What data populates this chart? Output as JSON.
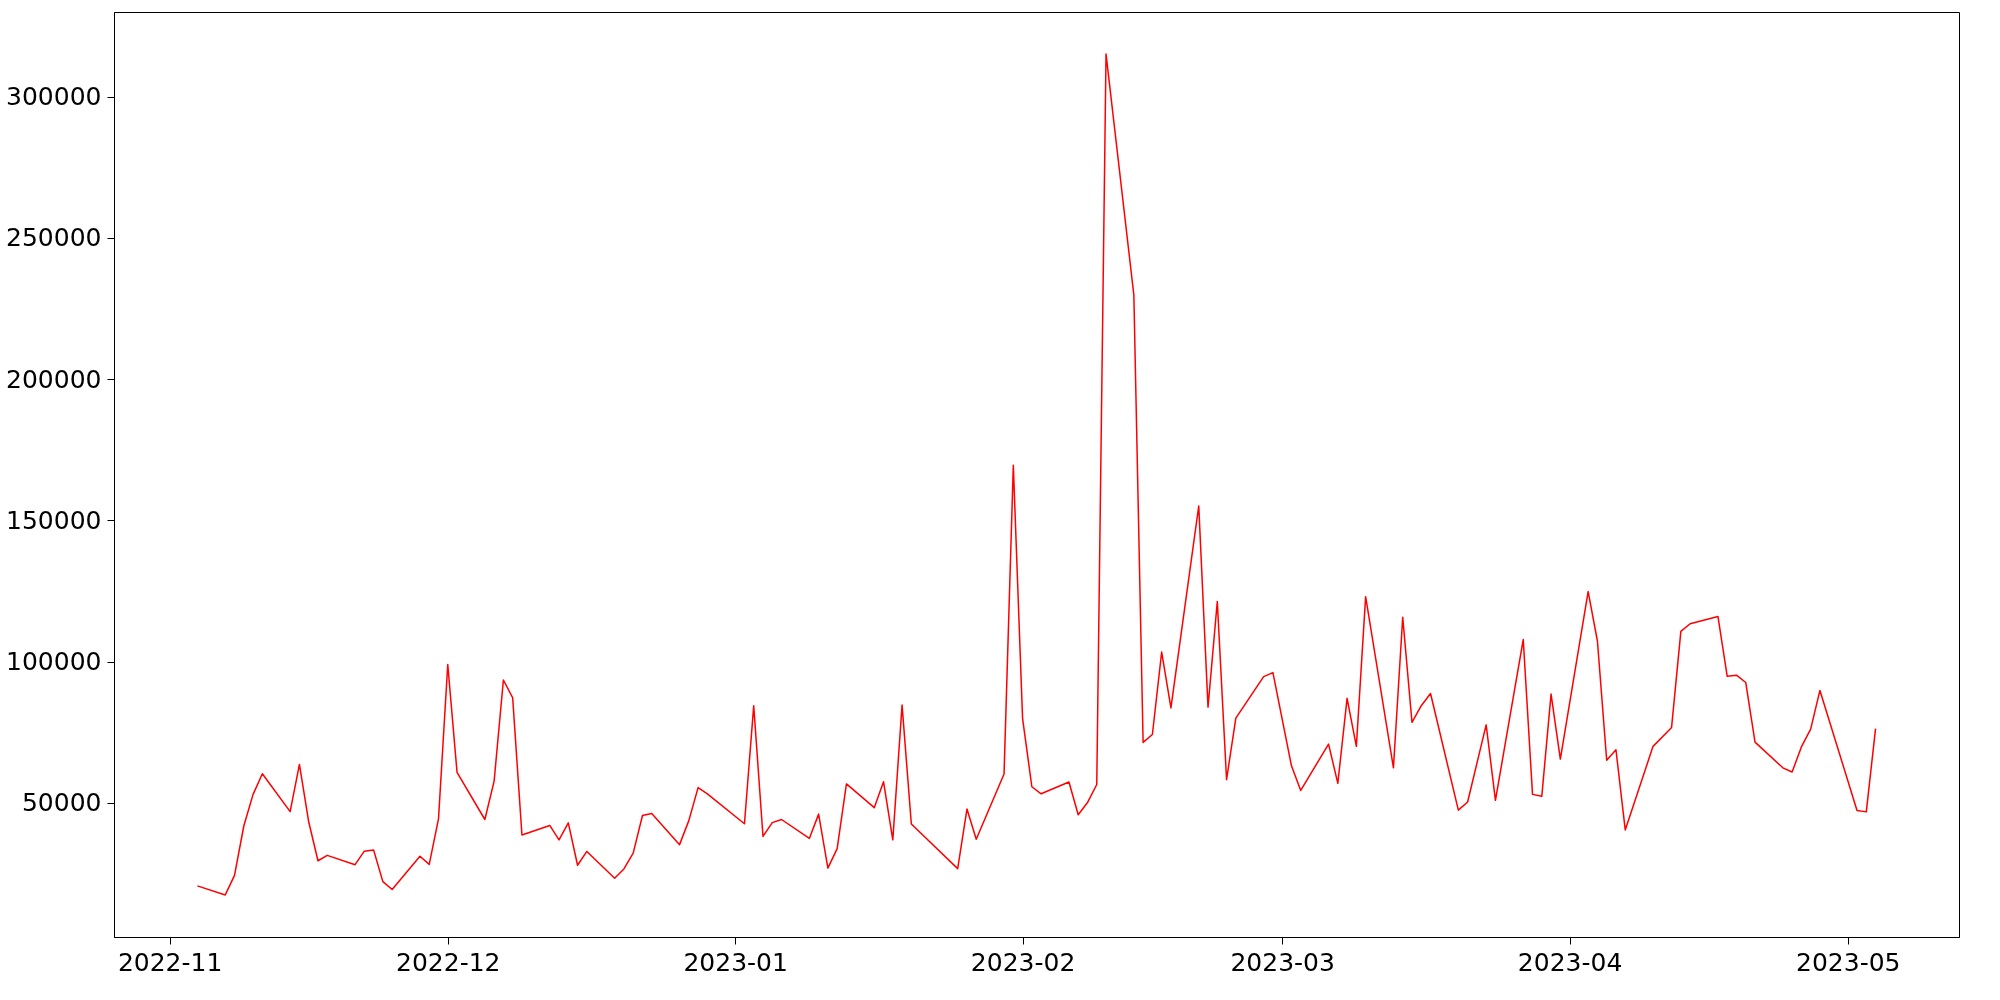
{
  "chart_data": {
    "type": "line",
    "x": [
      "2022-11-04",
      "2022-11-07",
      "2022-11-08",
      "2022-11-09",
      "2022-11-10",
      "2022-11-11",
      "2022-11-14",
      "2022-11-15",
      "2022-11-16",
      "2022-11-17",
      "2022-11-18",
      "2022-11-21",
      "2022-11-22",
      "2022-11-23",
      "2022-11-24",
      "2022-11-25",
      "2022-11-28",
      "2022-11-29",
      "2022-11-30",
      "2022-12-01",
      "2022-12-02",
      "2022-12-05",
      "2022-12-06",
      "2022-12-07",
      "2022-12-08",
      "2022-12-09",
      "2022-12-12",
      "2022-12-13",
      "2022-12-14",
      "2022-12-15",
      "2022-12-16",
      "2022-12-19",
      "2022-12-20",
      "2022-12-21",
      "2022-12-22",
      "2022-12-23",
      "2022-12-26",
      "2022-12-27",
      "2022-12-28",
      "2022-12-29",
      "2023-01-02",
      "2023-01-03",
      "2023-01-04",
      "2023-01-05",
      "2023-01-06",
      "2023-01-09",
      "2023-01-10",
      "2023-01-11",
      "2023-01-12",
      "2023-01-13",
      "2023-01-16",
      "2023-01-17",
      "2023-01-18",
      "2023-01-19",
      "2023-01-20",
      "2023-01-25",
      "2023-01-26",
      "2023-01-27",
      "2023-01-30",
      "2023-01-31",
      "2023-02-01",
      "2023-02-02",
      "2023-02-03",
      "2023-02-06",
      "2023-02-07",
      "2023-02-08",
      "2023-02-09",
      "2023-02-10",
      "2023-02-13",
      "2023-02-14",
      "2023-02-15",
      "2023-02-16",
      "2023-02-17",
      "2023-02-20",
      "2023-02-21",
      "2023-02-22",
      "2023-02-23",
      "2023-02-24",
      "2023-02-27",
      "2023-02-28",
      "2023-03-02",
      "2023-03-03",
      "2023-03-06",
      "2023-03-07",
      "2023-03-08",
      "2023-03-09",
      "2023-03-10",
      "2023-03-13",
      "2023-03-14",
      "2023-03-15",
      "2023-03-16",
      "2023-03-17",
      "2023-03-20",
      "2023-03-21",
      "2023-03-23",
      "2023-03-24",
      "2023-03-27",
      "2023-03-28",
      "2023-03-29",
      "2023-03-30",
      "2023-03-31",
      "2023-04-03",
      "2023-04-04",
      "2023-04-05",
      "2023-04-06",
      "2023-04-07",
      "2023-04-10",
      "2023-04-12",
      "2023-04-13",
      "2023-04-14",
      "2023-04-17",
      "2023-04-18",
      "2023-04-19",
      "2023-04-20",
      "2023-04-21",
      "2023-04-24",
      "2023-04-25",
      "2023-04-26",
      "2023-04-27",
      "2023-04-28",
      "2023-05-02",
      "2023-05-03",
      "2023-05-04"
    ],
    "series": [
      {
        "color": "#ff0000",
        "values": [
          20600,
          17400,
          24300,
          41800,
          53000,
          60300,
          46900,
          63600,
          43300,
          29500,
          31400,
          28100,
          32900,
          33300,
          22100,
          19300,
          31100,
          28200,
          44300,
          99000,
          60800,
          44100,
          57700,
          93500,
          87200,
          38600,
          42000,
          36900,
          42900,
          27900,
          32800,
          23300,
          26600,
          32200,
          45500,
          46200,
          35200,
          43700,
          55400,
          53200,
          42600,
          84400,
          38100,
          43000,
          44100,
          37400,
          46000,
          26900,
          33800,
          56700,
          48300,
          57500,
          36900,
          84600,
          42500,
          26700,
          47800,
          37100,
          60200,
          169500,
          79800,
          55700,
          53200,
          57400,
          45800,
          50100,
          56500,
          315100,
          229800,
          71400,
          74200,
          103400,
          83600,
          155100,
          83900,
          121300,
          58200,
          80000,
          94700,
          96100,
          63100,
          54400,
          70800,
          56900,
          87000,
          70000,
          123000,
          62400,
          115700,
          78500,
          84400,
          88700,
          47400,
          50300,
          77600,
          50900,
          107800,
          53000,
          52300,
          88500,
          65500,
          124800,
          107300,
          65100,
          68800,
          40400,
          70000,
          76700,
          110700,
          113400,
          116000,
          94800,
          95200,
          92600,
          71500,
          62400,
          60900,
          69800,
          76100,
          89800,
          47300,
          46800,
          76300
        ]
      }
    ],
    "xlim": [
      "2022-10-26",
      "2023-05-13"
    ],
    "xticks": [
      {
        "value": "2022-11-01",
        "label": "2022-11"
      },
      {
        "value": "2022-12-01",
        "label": "2022-12"
      },
      {
        "value": "2023-01-01",
        "label": "2023-01"
      },
      {
        "value": "2023-02-01",
        "label": "2023-02"
      },
      {
        "value": "2023-03-01",
        "label": "2023-03"
      },
      {
        "value": "2023-04-01",
        "label": "2023-04"
      },
      {
        "value": "2023-05-01",
        "label": "2023-05"
      }
    ],
    "ylim": [
      2500,
      330000
    ],
    "yticks": [
      50000,
      100000,
      150000,
      200000,
      250000,
      300000
    ],
    "grid": false,
    "marker": "none",
    "line_style": "solid"
  }
}
